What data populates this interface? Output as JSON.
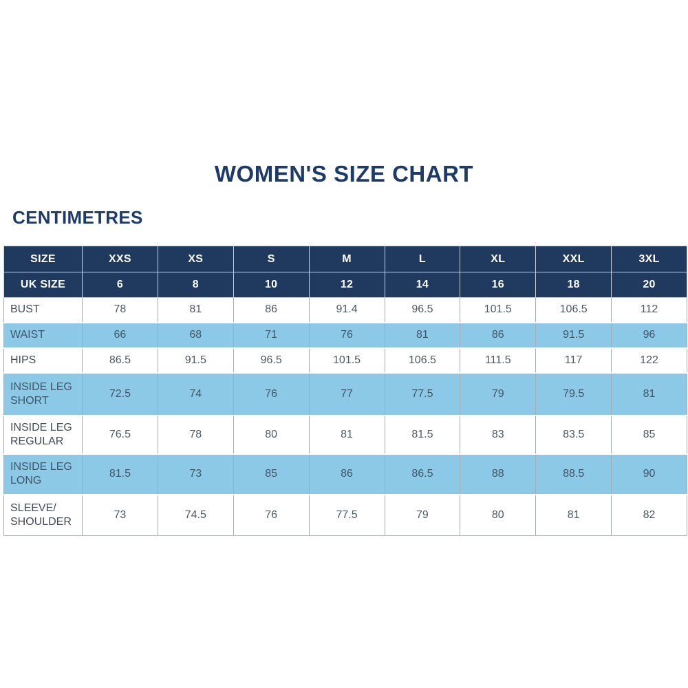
{
  "page": {
    "title": "WOMEN'S SIZE CHART",
    "unit_label": "CENTIMETRES"
  },
  "colors": {
    "title_text": "#1d3a68",
    "header_navy": "#1f3a5e",
    "highlight_blue": "#8bc9e7",
    "grid_line": "#9aa0a6",
    "body_text": "#4c5862",
    "background": "#ffffff"
  },
  "chart_data": {
    "type": "table",
    "title": "WOMEN'S SIZE CHART",
    "unit": "CENTIMETRES",
    "size_header": {
      "label": "SIZE",
      "values": [
        "XXS",
        "XS",
        "S",
        "M",
        "L",
        "XL",
        "XXL",
        "3XL"
      ]
    },
    "uk_size_header": {
      "label": "UK SIZE",
      "values": [
        "6",
        "8",
        "10",
        "12",
        "14",
        "16",
        "18",
        "20"
      ]
    },
    "rows": [
      {
        "label": "BUST",
        "highlight": false,
        "values": [
          "78",
          "81",
          "86",
          "91.4",
          "96.5",
          "101.5",
          "106.5",
          "112"
        ]
      },
      {
        "label": "WAIST",
        "highlight": true,
        "values": [
          "66",
          "68",
          "71",
          "76",
          "81",
          "86",
          "91.5",
          "96"
        ]
      },
      {
        "label": "HIPS",
        "highlight": false,
        "values": [
          "86.5",
          "91.5",
          "96.5",
          "101.5",
          "106.5",
          "111.5",
          "117",
          "122"
        ]
      },
      {
        "label": "INSIDE LEG SHORT",
        "highlight": true,
        "values": [
          "72.5",
          "74",
          "76",
          "77",
          "77.5",
          "79",
          "79.5",
          "81"
        ]
      },
      {
        "label": "INSIDE LEG REGULAR",
        "highlight": false,
        "values": [
          "76.5",
          "78",
          "80",
          "81",
          "81.5",
          "83",
          "83.5",
          "85"
        ]
      },
      {
        "label": "INSIDE LEG LONG",
        "highlight": true,
        "values": [
          "81.5",
          "73",
          "85",
          "86",
          "86.5",
          "88",
          "88.5",
          "90"
        ]
      },
      {
        "label": "SLEEVE/ SHOULDER",
        "highlight": false,
        "values": [
          "73",
          "74.5",
          "76",
          "77.5",
          "79",
          "80",
          "81",
          "82"
        ]
      }
    ]
  }
}
